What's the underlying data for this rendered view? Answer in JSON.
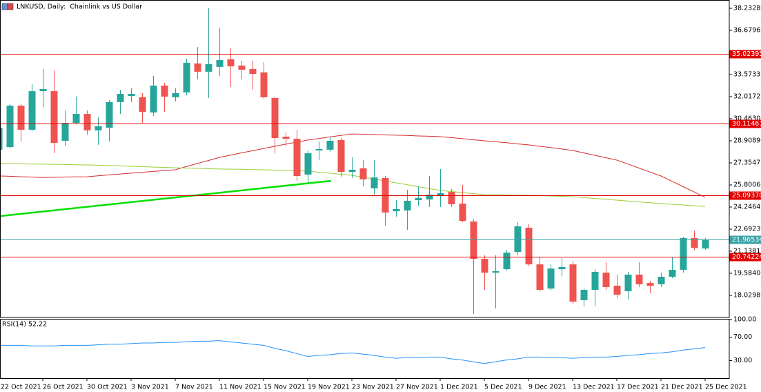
{
  "chart_data": [
    {
      "type": "candlestick",
      "title": "LNKUSD, Daily:  Chainlink vs US Dollar",
      "categories": [
        "22 Oct 2021",
        null,
        null,
        null,
        "26 Oct 2021",
        null,
        null,
        null,
        "30 Oct 2021",
        null,
        null,
        null,
        "3 Nov 2021",
        null,
        null,
        null,
        "7 Nov 2021",
        null,
        null,
        null,
        "11 Nov 2021",
        null,
        null,
        null,
        "15 Nov 2021",
        null,
        null,
        null,
        "19 Nov 2021",
        null,
        null,
        null,
        "23 Nov 2021",
        null,
        null,
        null,
        "27 Nov 2021",
        null,
        null,
        null,
        "1 Dec 2021",
        null,
        null,
        null,
        "5 Dec 2021",
        null,
        null,
        null,
        "9 Dec 2021",
        null,
        null,
        null,
        "13 Dec 2021",
        null,
        null,
        null,
        "17 Dec 2021",
        null,
        null,
        null,
        "21 Dec 2021",
        null,
        null,
        null,
        "25 Dec 2021"
      ],
      "open": [
        28.28,
        28.47,
        31.38,
        29.68,
        32.4,
        32.4,
        28.91,
        30.17,
        30.8,
        29.64,
        29.83,
        31.63,
        32.06,
        31.97,
        30.9,
        32.79,
        31.97,
        32.31,
        34.35,
        33.77,
        34.11,
        34.64,
        34.2,
        33.96,
        33.72,
        31.92,
        29.2,
        29.05,
        26.53,
        28.23,
        28.28,
        28.96,
        26.72,
        26.97,
        25.56,
        26.29,
        23.95,
        24.0,
        24.73,
        24.78,
        25.07,
        25.31,
        24.49,
        23.23,
        20.6,
        19.63,
        19.87,
        21.09,
        22.79,
        20.21,
        18.51,
        19.87,
        20.21,
        17.69,
        18.42,
        19.63,
        18.71,
        18.32,
        19.49,
        18.9,
        18.81,
        19.34,
        19.83,
        22.06,
        21.33
      ],
      "high": [
        30.32,
        31.53,
        31.53,
        32.89,
        33.96,
        33.86,
        31.04,
        32.02,
        31.04,
        30.56,
        31.77,
        32.5,
        32.6,
        32.26,
        33.47,
        32.99,
        32.6,
        34.69,
        35.51,
        38.23,
        36.87,
        35.42,
        34.54,
        34.54,
        34.44,
        32.0,
        29.49,
        29.68,
        28.23,
        28.86,
        29.2,
        29.1,
        27.74,
        27.55,
        27.55,
        26.43,
        24.73,
        25.46,
        25.7,
        26.43,
        26.92,
        25.51,
        25.8,
        23.37,
        20.85,
        20.85,
        21.23,
        23.18,
        23.03,
        20.75,
        20.21,
        20.65,
        20.46,
        18.51,
        19.87,
        20.36,
        19.49,
        19.68,
        20.36,
        19.05,
        19.63,
        20.75,
        22.16,
        22.59,
        22.06
      ],
      "low": [
        28.13,
        28.37,
        28.86,
        29.59,
        31.29,
        28.03,
        28.52,
        30.07,
        29.34,
        28.62,
        28.86,
        30.8,
        31.63,
        30.17,
        30.66,
        30.95,
        31.68,
        32.11,
        33.23,
        31.92,
        33.47,
        32.7,
        33.23,
        32.5,
        31.87,
        28.03,
        28.52,
        26.09,
        25.9,
        27.55,
        28.13,
        26.38,
        26.29,
        25.7,
        25.12,
        22.93,
        23.57,
        22.64,
        24.34,
        24.25,
        24.25,
        24.25,
        23.18,
        16.72,
        18.42,
        17.11,
        19.78,
        20.85,
        20.12,
        18.32,
        18.37,
        19.39,
        17.4,
        17.25,
        17.25,
        18.42,
        17.83,
        17.74,
        18.61,
        18.17,
        18.61,
        19.24,
        19.63,
        21.19,
        21.23
      ],
      "close": [
        29.83,
        31.38,
        29.68,
        32.4,
        32.55,
        28.76,
        30.17,
        30.8,
        29.64,
        29.93,
        31.63,
        32.21,
        32.21,
        30.95,
        32.79,
        32.02,
        32.26,
        34.4,
        33.77,
        34.3,
        34.59,
        34.15,
        33.91,
        33.62,
        31.97,
        29.1,
        29.05,
        26.43,
        28.03,
        28.33,
        28.91,
        26.72,
        26.87,
        26.19,
        26.33,
        23.86,
        24.1,
        24.68,
        24.88,
        25.12,
        25.22,
        24.44,
        23.27,
        20.6,
        19.63,
        19.73,
        21.04,
        22.89,
        20.21,
        18.42,
        19.92,
        20.02,
        17.59,
        18.42,
        19.68,
        18.61,
        18.08,
        19.49,
        18.81,
        18.71,
        19.34,
        19.83,
        22.06,
        21.38,
        21.97
      ],
      "up_color": "#26a69a",
      "down_color": "#ef5350",
      "series": [
        {
          "color": "#d42a2a",
          "values": [
            26.43,
            26.41,
            26.38,
            26.36,
            26.33,
            26.34,
            26.36,
            26.37,
            26.38,
            26.44,
            26.51,
            26.57,
            26.63,
            26.69,
            26.75,
            26.81,
            26.87,
            27.09,
            27.31,
            27.52,
            27.74,
            27.9,
            28.06,
            28.21,
            28.37,
            28.52,
            28.67,
            28.81,
            28.96,
            29.07,
            29.18,
            29.28,
            29.39,
            29.37,
            29.35,
            29.32,
            29.3,
            29.28,
            29.25,
            29.23,
            29.2,
            29.13,
            29.06,
            28.98,
            28.91,
            28.84,
            28.77,
            28.69,
            28.62,
            28.52,
            28.43,
            28.33,
            28.23,
            28.06,
            27.89,
            27.72,
            27.55,
            27.27,
            26.99,
            26.71,
            26.43,
            26.06,
            25.68,
            25.31,
            24.93
          ]
        },
        {
          "color": "#9acd32",
          "values": [
            27.31,
            27.3,
            27.29,
            27.27,
            27.26,
            27.25,
            27.24,
            27.22,
            27.21,
            27.19,
            27.16,
            27.14,
            27.11,
            27.09,
            27.06,
            27.04,
            27.01,
            26.99,
            26.97,
            26.94,
            26.92,
            26.91,
            26.9,
            26.88,
            26.87,
            26.85,
            26.82,
            26.8,
            26.77,
            26.7,
            26.63,
            26.55,
            26.48,
            26.35,
            26.22,
            26.08,
            25.95,
            25.82,
            25.68,
            25.55,
            25.41,
            25.34,
            25.27,
            25.19,
            25.12,
            25.11,
            25.1,
            25.08,
            25.07,
            25.05,
            25.02,
            25.0,
            24.97,
            24.91,
            24.85,
            24.79,
            24.73,
            24.67,
            24.61,
            24.55,
            24.49,
            24.44,
            24.39,
            24.34,
            24.29
          ]
        }
      ],
      "trendline": {
        "color": "#00e000",
        "values": [
          23.61,
          26.09
        ]
      },
      "levels": {
        "color": "#e00000",
        "values": [
          35.02395,
          30.11461,
          25.0937,
          20.74224
        ],
        "value_labels": [
          "35.02395",
          "30.11461",
          "25.09370",
          "20.74224"
        ]
      },
      "price_line": {
        "color": "#3ba3a6",
        "value": 21.96534
      },
      "ylim": [
        16.475,
        38.816
      ],
      "yticks": [
        {
          "value": 38.2328,
          "label": "38.23280"
        },
        36.67965,
        33.57335,
        {
          "value": 32.0172,
          "label": "32.01720"
        },
        30.46305,
        {
          "value": 28.9089,
          "label": "28.90890"
        },
        27.35475,
        {
          "value": 25.8006,
          "label": "25.80060"
        },
        24.24645,
        {
          "value": 22.6923,
          "label": "22.69230"
        },
        21.13815,
        {
          "value": 19.584,
          "label": "19.58400"
        },
        18.02985
      ]
    },
    {
      "type": "line",
      "title": "RSI(14) 52.22",
      "color": "#1e90ff",
      "values": [
        56,
        56,
        56,
        55,
        55,
        55,
        56,
        56,
        56,
        57,
        58,
        58,
        59,
        60,
        60,
        61,
        61,
        62,
        63,
        63,
        64,
        62,
        60,
        58,
        56,
        51,
        47,
        42,
        37,
        39,
        40,
        42,
        43,
        41,
        39,
        36,
        34,
        35,
        35,
        36,
        36,
        33,
        31,
        28,
        25,
        28,
        31,
        33,
        36,
        36,
        35,
        35,
        34,
        35,
        36,
        36,
        37,
        39,
        40,
        42,
        43,
        45,
        48,
        50,
        52.22
      ],
      "ylim": [
        0,
        100
      ],
      "yticks": [
        {
          "value": 100,
          "label": "100.00"
        },
        {
          "value": 70,
          "label": "70.00"
        },
        {
          "value": 30,
          "label": "30.00"
        }
      ]
    }
  ]
}
